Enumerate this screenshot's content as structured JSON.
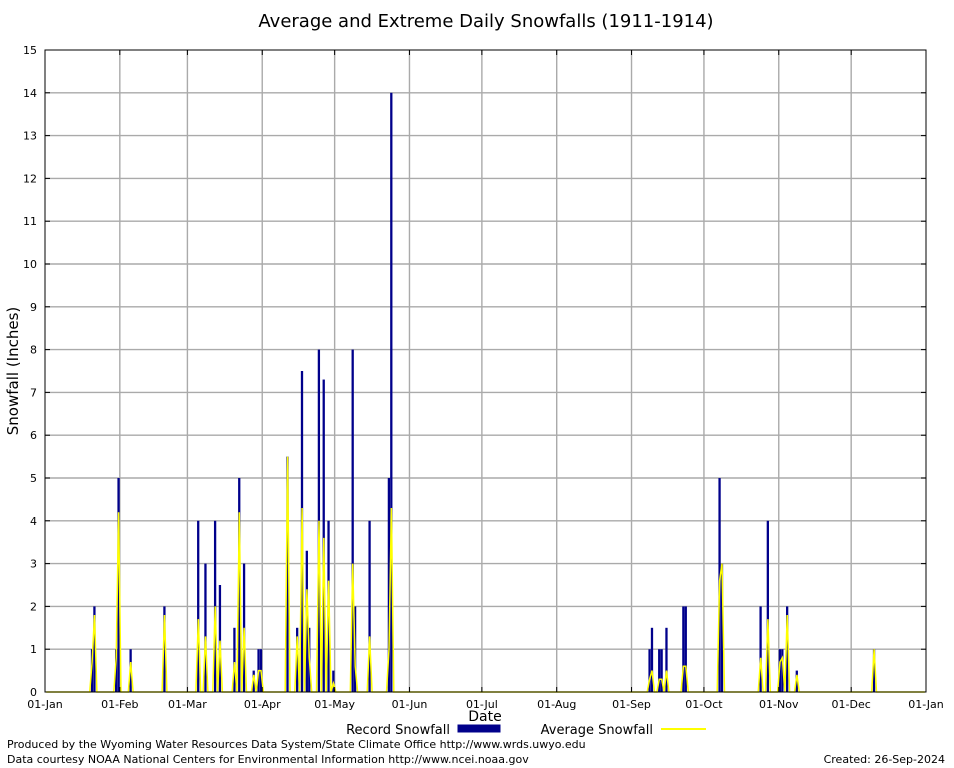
{
  "chart_data": {
    "type": "bar",
    "title": "Average and Extreme Daily Snowfalls (1911-1914)",
    "xlabel": "Date",
    "ylabel": "Snowfall (Inches)",
    "ylim": [
      0,
      15
    ],
    "yticks": [
      "0",
      "1",
      "2",
      "3",
      "4",
      "5",
      "6",
      "7",
      "8",
      "9",
      "10",
      "11",
      "12",
      "13",
      "14",
      "15"
    ],
    "xlim": [
      0,
      365
    ],
    "xticks": [
      {
        "label": "01-Jan",
        "day": 0
      },
      {
        "label": "01-Feb",
        "day": 31
      },
      {
        "label": "01-Mar",
        "day": 59
      },
      {
        "label": "01-Apr",
        "day": 90
      },
      {
        "label": "01-May",
        "day": 120
      },
      {
        "label": "01-Jun",
        "day": 151
      },
      {
        "label": "01-Jul",
        "day": 181
      },
      {
        "label": "01-Aug",
        "day": 212
      },
      {
        "label": "01-Sep",
        "day": 243
      },
      {
        "label": "01-Oct",
        "day": 273
      },
      {
        "label": "01-Nov",
        "day": 304
      },
      {
        "label": "01-Dec",
        "day": 334
      },
      {
        "label": "01-Jan",
        "day": 365
      }
    ],
    "grid": true,
    "legend_position": "bottom",
    "series": [
      {
        "name": "Record Snowfall",
        "kind": "bar",
        "color": "#00008b",
        "points": [
          {
            "date": "20-Jan",
            "value": 1.0
          },
          {
            "date": "21-Jan",
            "value": 2.0
          },
          {
            "date": "30-Jan",
            "value": 1.0
          },
          {
            "date": "31-Jan",
            "value": 5.0
          },
          {
            "date": "05-Feb",
            "value": 1.0
          },
          {
            "date": "19-Feb",
            "value": 2.0
          },
          {
            "date": "05-Mar",
            "value": 4.0
          },
          {
            "date": "08-Mar",
            "value": 3.0
          },
          {
            "date": "12-Mar",
            "value": 4.0
          },
          {
            "date": "14-Mar",
            "value": 2.5
          },
          {
            "date": "20-Mar",
            "value": 1.5
          },
          {
            "date": "22-Mar",
            "value": 5.0
          },
          {
            "date": "24-Mar",
            "value": 3.0
          },
          {
            "date": "28-Mar",
            "value": 0.5
          },
          {
            "date": "30-Mar",
            "value": 1.0
          },
          {
            "date": "31-Mar",
            "value": 1.0
          },
          {
            "date": "11-Apr",
            "value": 5.5
          },
          {
            "date": "15-Apr",
            "value": 1.5
          },
          {
            "date": "17-Apr",
            "value": 7.5
          },
          {
            "date": "19-Apr",
            "value": 3.3
          },
          {
            "date": "20-Apr",
            "value": 1.5
          },
          {
            "date": "24-Apr",
            "value": 8.0
          },
          {
            "date": "26-Apr",
            "value": 7.3
          },
          {
            "date": "28-Apr",
            "value": 4.0
          },
          {
            "date": "30-Apr",
            "value": 0.5
          },
          {
            "date": "08-May",
            "value": 8.0
          },
          {
            "date": "09-May",
            "value": 2.0
          },
          {
            "date": "15-May",
            "value": 4.0
          },
          {
            "date": "23-May",
            "value": 5.0
          },
          {
            "date": "24-May",
            "value": 14.0
          },
          {
            "date": "08-Sep",
            "value": 1.0
          },
          {
            "date": "09-Sep",
            "value": 1.5
          },
          {
            "date": "12-Sep",
            "value": 1.0
          },
          {
            "date": "13-Sep",
            "value": 1.0
          },
          {
            "date": "15-Sep",
            "value": 1.5
          },
          {
            "date": "22-Sep",
            "value": 2.0
          },
          {
            "date": "23-Sep",
            "value": 2.0
          },
          {
            "date": "07-Oct",
            "value": 5.0
          },
          {
            "date": "08-Oct",
            "value": 3.0
          },
          {
            "date": "24-Oct",
            "value": 2.0
          },
          {
            "date": "27-Oct",
            "value": 4.0
          },
          {
            "date": "01-Nov",
            "value": 1.0
          },
          {
            "date": "02-Nov",
            "value": 1.0
          },
          {
            "date": "04-Nov",
            "value": 2.0
          },
          {
            "date": "08-Nov",
            "value": 0.5
          },
          {
            "date": "10-Dec",
            "value": 1.0
          }
        ]
      },
      {
        "name": "Average Snowfall",
        "kind": "line",
        "color": "#ffff00",
        "points": [
          {
            "date": "20-Jan",
            "value": 0.7
          },
          {
            "date": "21-Jan",
            "value": 1.8
          },
          {
            "date": "30-Jan",
            "value": 0.8
          },
          {
            "date": "31-Jan",
            "value": 4.2
          },
          {
            "date": "05-Feb",
            "value": 0.7
          },
          {
            "date": "19-Feb",
            "value": 1.8
          },
          {
            "date": "05-Mar",
            "value": 1.7
          },
          {
            "date": "08-Mar",
            "value": 1.3
          },
          {
            "date": "12-Mar",
            "value": 2.0
          },
          {
            "date": "14-Mar",
            "value": 1.2
          },
          {
            "date": "20-Mar",
            "value": 0.7
          },
          {
            "date": "22-Mar",
            "value": 4.2
          },
          {
            "date": "24-Mar",
            "value": 1.5
          },
          {
            "date": "28-Mar",
            "value": 0.4
          },
          {
            "date": "30-Mar",
            "value": 0.5
          },
          {
            "date": "31-Mar",
            "value": 0.5
          },
          {
            "date": "11-Apr",
            "value": 5.5
          },
          {
            "date": "15-Apr",
            "value": 1.3
          },
          {
            "date": "17-Apr",
            "value": 4.3
          },
          {
            "date": "19-Apr",
            "value": 2.4
          },
          {
            "date": "20-Apr",
            "value": 0.8
          },
          {
            "date": "24-Apr",
            "value": 4.0
          },
          {
            "date": "26-Apr",
            "value": 3.6
          },
          {
            "date": "28-Apr",
            "value": 2.6
          },
          {
            "date": "30-Apr",
            "value": 0.2
          },
          {
            "date": "08-May",
            "value": 3.0
          },
          {
            "date": "09-May",
            "value": 0.6
          },
          {
            "date": "15-May",
            "value": 1.3
          },
          {
            "date": "23-May",
            "value": 1.0
          },
          {
            "date": "24-May",
            "value": 4.3
          },
          {
            "date": "08-Sep",
            "value": 0.3
          },
          {
            "date": "09-Sep",
            "value": 0.5
          },
          {
            "date": "12-Sep",
            "value": 0.3
          },
          {
            "date": "13-Sep",
            "value": 0.3
          },
          {
            "date": "15-Sep",
            "value": 0.5
          },
          {
            "date": "22-Sep",
            "value": 0.6
          },
          {
            "date": "23-Sep",
            "value": 0.6
          },
          {
            "date": "07-Oct",
            "value": 2.6
          },
          {
            "date": "08-Oct",
            "value": 3.0
          },
          {
            "date": "24-Oct",
            "value": 0.8
          },
          {
            "date": "27-Oct",
            "value": 1.7
          },
          {
            "date": "01-Nov",
            "value": 0.7
          },
          {
            "date": "02-Nov",
            "value": 0.8
          },
          {
            "date": "04-Nov",
            "value": 1.8
          },
          {
            "date": "08-Nov",
            "value": 0.4
          },
          {
            "date": "10-Dec",
            "value": 1.0
          }
        ]
      }
    ]
  },
  "footer": {
    "produced_by": "Produced by the Wyoming Water Resources Data System/State Climate Office http://www.wrds.uwyo.edu",
    "courtesy": "Data courtesy NOAA National Centers for Environmental Information http://www.ncei.noaa.gov",
    "created": "Created:  26-Sep-2024"
  }
}
